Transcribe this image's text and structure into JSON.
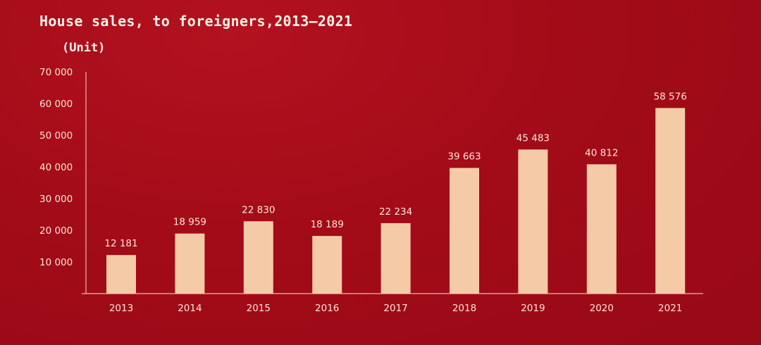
{
  "chart_data": {
    "type": "bar",
    "title": "House sales, to foreigners,2013—2021",
    "ylabel": "(Unit)",
    "xlabel": "",
    "categories": [
      "2013",
      "2014",
      "2015",
      "2016",
      "2017",
      "2018",
      "2019",
      "2020",
      "2021"
    ],
    "values": [
      12181,
      18959,
      22830,
      18189,
      22234,
      39663,
      45483,
      40812,
      58576
    ],
    "value_labels": [
      "12 181",
      "18 959",
      "22 830",
      "18 189",
      "22 234",
      "39 663",
      "45 483",
      "40 812",
      "58 576"
    ],
    "ylim": [
      0,
      70000
    ],
    "yticks": [
      10000,
      20000,
      30000,
      40000,
      50000,
      60000,
      70000
    ],
    "ytick_labels": [
      "10 000",
      "20 000",
      "30 000",
      "40 000",
      "50 000",
      "60 000",
      "70 000"
    ],
    "grid": false,
    "legend": "none",
    "colors": {
      "background": "#a30b18",
      "bar": "#f5cba7",
      "axis": "#e8b8a8",
      "text": "#fbe7d8"
    }
  }
}
